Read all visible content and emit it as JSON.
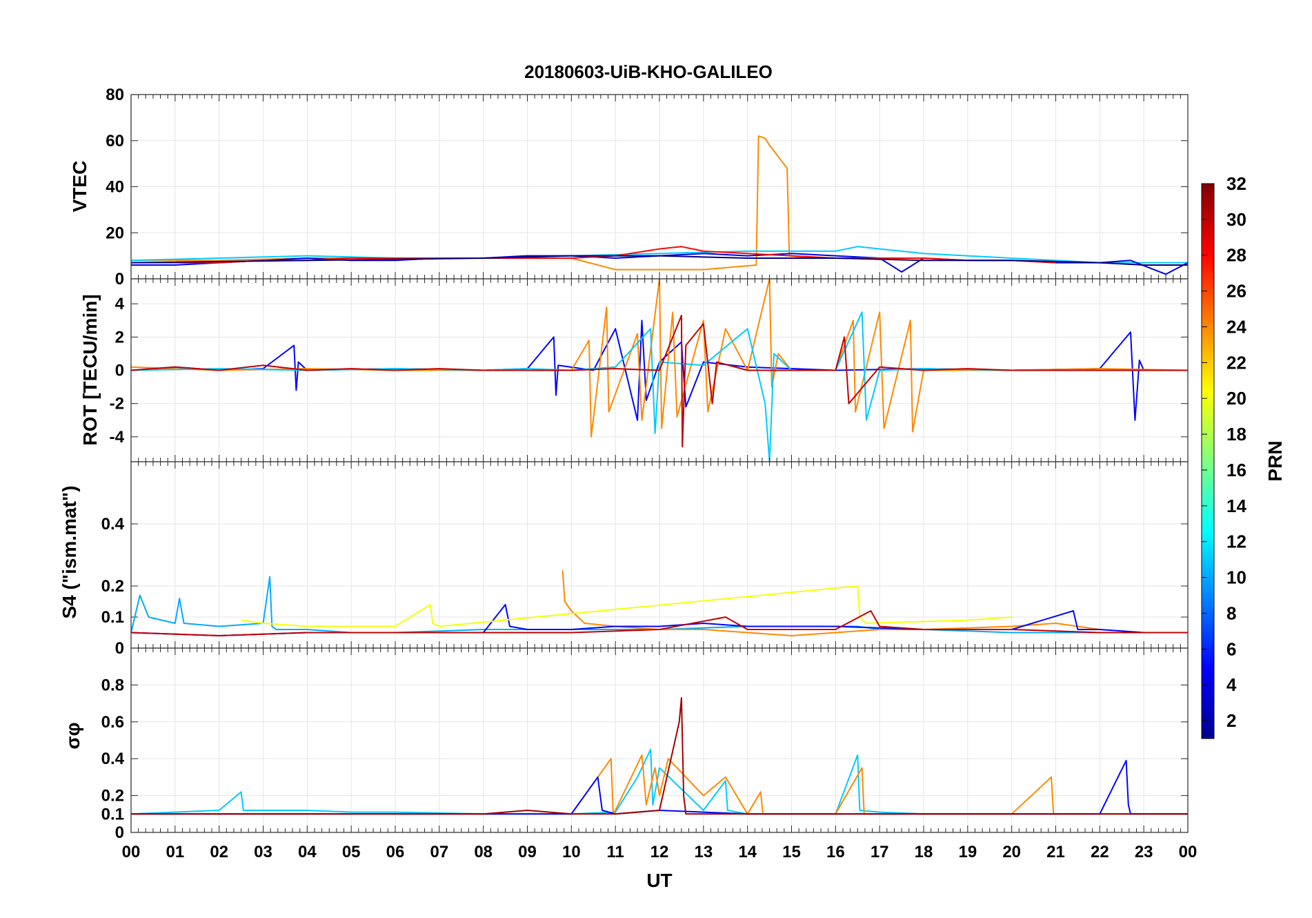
{
  "chart_data": {
    "type": "line",
    "title": "20180603-UiB-KHO-GALILEO",
    "xlabel": "UT",
    "x_ticks": [
      "00",
      "01",
      "02",
      "03",
      "04",
      "05",
      "06",
      "07",
      "08",
      "09",
      "10",
      "11",
      "12",
      "13",
      "14",
      "15",
      "16",
      "17",
      "18",
      "19",
      "20",
      "21",
      "22",
      "23",
      "00"
    ],
    "xlim": [
      0,
      24
    ],
    "colorbar": {
      "label": "PRN",
      "range": [
        1,
        32
      ],
      "ticks": [
        "2",
        "4",
        "6",
        "8",
        "10",
        "12",
        "14",
        "16",
        "18",
        "20",
        "22",
        "24",
        "26",
        "28",
        "30",
        "32"
      ],
      "colormap": "jet"
    },
    "panels": [
      {
        "name": "vtec",
        "ylabel": "VTEC",
        "ylim": [
          0,
          80
        ],
        "y_ticks": [
          "0",
          "20",
          "40",
          "60",
          "80"
        ],
        "series": [
          {
            "prn": 24,
            "x": [
              0,
              2,
              4,
              6,
              8,
              10,
              11,
              12,
              13,
              14.2,
              14.25,
              14.4,
              14.5,
              14.9,
              14.95,
              15.5,
              16
            ],
            "y": [
              8,
              8,
              9,
              9,
              9,
              9,
              4,
              4,
              4,
              6,
              62,
              61,
              58,
              48,
              10,
              9,
              9
            ]
          },
          {
            "prn": 11,
            "x": [
              0,
              2,
              4,
              6,
              8,
              10,
              12,
              14,
              16,
              16.5,
              17,
              17.5,
              18,
              19,
              20,
              21,
              22,
              23,
              24
            ],
            "y": [
              8,
              9,
              10,
              9,
              9,
              10,
              11,
              12,
              12,
              14,
              13,
              12,
              11,
              10,
              9,
              8,
              7,
              7,
              7
            ]
          },
          {
            "prn": 4,
            "x": [
              0,
              1,
              2,
              3,
              4,
              5,
              6,
              7,
              8,
              9,
              10,
              11,
              12,
              13,
              14,
              15,
              16,
              17,
              17.5,
              18,
              19,
              20,
              21,
              22,
              22.7,
              23.5,
              24
            ],
            "y": [
              6,
              6,
              7,
              8,
              9,
              8,
              8,
              9,
              9,
              10,
              10,
              9,
              10,
              11,
              10,
              11,
              10,
              9,
              3,
              9,
              8,
              8,
              7,
              7,
              8,
              2,
              7
            ]
          },
          {
            "prn": 28,
            "x": [
              0,
              2,
              3,
              4,
              5,
              6,
              7,
              8,
              9,
              10,
              11,
              12,
              12.5,
              13,
              14,
              16,
              18,
              19,
              20,
              21
            ],
            "y": [
              7,
              7,
              8,
              8,
              9,
              9,
              9,
              9,
              9,
              9,
              10,
              13,
              14,
              12,
              11,
              9,
              9,
              8,
              8,
              7
            ]
          },
          {
            "prn": 1,
            "x": [
              0,
              4,
              8,
              10,
              12,
              14,
              16,
              18,
              20,
              22,
              23,
              24
            ],
            "y": [
              7,
              8,
              9,
              10,
              10,
              9,
              9,
              8,
              8,
              7,
              6,
              6
            ]
          }
        ]
      },
      {
        "name": "rot",
        "ylabel": "ROT [TECU/min]",
        "ylim": [
          -5.5,
          5.5
        ],
        "y_ticks": [
          "-4",
          "-2",
          "0",
          "2",
          "4"
        ],
        "series": [
          {
            "prn": 5,
            "x": [
              0,
              1,
              2,
              3,
              3.7,
              3.75,
              3.8,
              4,
              6,
              8,
              9,
              9.6,
              9.65,
              9.7,
              10.5,
              11,
              11.5,
              11.6,
              11.7,
              12,
              12.5,
              12.6,
              13,
              14,
              16,
              18,
              20,
              22,
              22.7,
              22.8,
              22.9,
              23,
              24
            ],
            "y": [
              0,
              0.2,
              0,
              0.1,
              1.5,
              -1.2,
              0.5,
              0,
              0.1,
              0,
              0.1,
              2,
              -1.5,
              0.3,
              0,
              2.5,
              -3,
              3,
              -1.8,
              0.5,
              1.7,
              -2.2,
              0.5,
              0.2,
              0,
              0.1,
              0,
              0.1,
              2.3,
              -3,
              0.6,
              0,
              0
            ]
          },
          {
            "prn": 24,
            "x": [
              0,
              2,
              4,
              6,
              8,
              10,
              10.4,
              10.45,
              10.8,
              10.85,
              11.5,
              11.6,
              12,
              12.05,
              12.3,
              12.4,
              13,
              13.1,
              13.5,
              14,
              14.5,
              14.55,
              14.7,
              15,
              16,
              16.4,
              16.45,
              17,
              17.1,
              17.7,
              17.75,
              18,
              20,
              22,
              24
            ],
            "y": [
              0.2,
              0,
              0.1,
              0,
              0,
              0,
              1.8,
              -4,
              3.8,
              -2.5,
              2.2,
              -3,
              5.5,
              -3.5,
              3.5,
              -2.8,
              3,
              -2.5,
              2.5,
              0,
              5.5,
              -1,
              1,
              0,
              0,
              3,
              -2.5,
              3.5,
              -3.5,
              3,
              -3.7,
              0,
              0,
              0.1,
              0
            ]
          },
          {
            "prn": 11,
            "x": [
              0,
              2,
              4,
              6,
              8,
              9,
              10,
              11,
              11.8,
              11.9,
              12,
              13,
              14,
              14.4,
              14.5,
              14.6,
              15,
              16,
              16.6,
              16.7,
              17,
              18,
              20,
              22,
              24
            ],
            "y": [
              0,
              0.1,
              0,
              0.1,
              0,
              0.1,
              0,
              0.2,
              2.5,
              -3.8,
              0.5,
              0.3,
              2.5,
              -2,
              -5.5,
              1,
              0,
              0,
              3.5,
              -3,
              0,
              0.1,
              0,
              0,
              0
            ]
          },
          {
            "prn": 30,
            "x": [
              0,
              1,
              2,
              3,
              4,
              5,
              6,
              7,
              8,
              9,
              10,
              11,
              12,
              12.5,
              12.52,
              12.6,
              13,
              13.2,
              13.3,
              14,
              16,
              16.2,
              16.3,
              17,
              18,
              19,
              20,
              22,
              24
            ],
            "y": [
              0,
              0.2,
              0,
              0.3,
              0,
              0.1,
              0,
              0.1,
              0,
              0,
              0,
              0.1,
              0,
              3.3,
              -4.6,
              1.5,
              2.8,
              -2,
              0.5,
              0,
              0,
              2,
              -2,
              0.2,
              0,
              0.1,
              0,
              0,
              0
            ]
          }
        ]
      },
      {
        "name": "s4",
        "ylabel": "S4 (\"ism.mat\")",
        "ylim": [
          0,
          0.6
        ],
        "y_ticks": [
          "0",
          "0.1",
          "0.2",
          "0.4"
        ],
        "series": [
          {
            "prn": 10,
            "x": [
              0,
              0.2,
              0.4,
              1,
              1.1,
              1.2,
              2,
              3,
              3.15,
              3.2,
              3.3,
              4,
              5,
              6,
              8,
              10,
              12,
              14,
              16,
              16.5,
              17,
              18,
              20,
              22,
              24
            ],
            "y": [
              0.05,
              0.17,
              0.1,
              0.08,
              0.16,
              0.08,
              0.07,
              0.08,
              0.23,
              0.07,
              0.06,
              0.06,
              0.05,
              0.05,
              0.06,
              0.06,
              0.06,
              0.07,
              0.07,
              0.07,
              0.06,
              0.06,
              0.05,
              0.05,
              0.05
            ]
          },
          {
            "prn": 24,
            "x": [
              9.8,
              9.85,
              10,
              10.3,
              11,
              12,
              13,
              14,
              15,
              16,
              17,
              18,
              20,
              21,
              22
            ],
            "y": [
              0.25,
              0.15,
              0.12,
              0.08,
              0.07,
              0.06,
              0.06,
              0.05,
              0.04,
              0.05,
              0.06,
              0.06,
              0.07,
              0.08,
              0.06
            ]
          },
          {
            "prn": 5,
            "x": [
              0,
              2,
              4,
              6,
              8,
              8.5,
              8.6,
              9,
              10,
              11,
              12,
              13,
              14,
              16,
              18,
              20,
              21.4,
              21.5,
              22,
              23,
              24
            ],
            "y": [
              0.05,
              0.04,
              0.05,
              0.05,
              0.05,
              0.14,
              0.07,
              0.06,
              0.06,
              0.07,
              0.07,
              0.08,
              0.07,
              0.07,
              0.06,
              0.06,
              0.12,
              0.06,
              0.06,
              0.05,
              0.05
            ]
          },
          {
            "prn": 20,
            "x": [
              2.5,
              3,
              4,
              5,
              6,
              6.8,
              6.85,
              7,
              16.5,
              16.55,
              16.7,
              19,
              20
            ],
            "y": [
              0.09,
              0.08,
              0.07,
              0.07,
              0.07,
              0.14,
              0.08,
              0.07,
              0.2,
              0.1,
              0.08,
              0.09,
              0.1
            ]
          },
          {
            "prn": 30,
            "x": [
              0,
              2,
              4,
              6,
              8,
              10,
              12,
              13.5,
              14,
              16,
              16.8,
              17,
              18,
              20,
              22,
              24
            ],
            "y": [
              0.05,
              0.04,
              0.05,
              0.05,
              0.05,
              0.05,
              0.06,
              0.1,
              0.06,
              0.06,
              0.12,
              0.07,
              0.06,
              0.06,
              0.05,
              0.05
            ]
          }
        ]
      },
      {
        "name": "sigma-phi",
        "ylabel": "σφ",
        "ylim": [
          0,
          1
        ],
        "y_ticks": [
          "0",
          "0.1",
          "0.2",
          "0.4",
          "0.6",
          "0.8"
        ],
        "series": [
          {
            "prn": 11,
            "x": [
              0,
              1,
              2,
              2.5,
              2.55,
              3,
              4,
              5,
              6,
              8,
              10,
              11,
              11.5,
              11.8,
              11.85,
              12,
              13,
              13.5,
              13.55,
              14,
              16,
              16.5,
              16.55,
              17,
              18,
              20,
              22,
              24
            ],
            "y": [
              0.1,
              0.11,
              0.12,
              0.22,
              0.12,
              0.12,
              0.12,
              0.11,
              0.11,
              0.1,
              0.1,
              0.11,
              0.3,
              0.45,
              0.15,
              0.35,
              0.12,
              0.28,
              0.12,
              0.1,
              0.1,
              0.42,
              0.12,
              0.11,
              0.1,
              0.1,
              0.1,
              0.1
            ]
          },
          {
            "prn": 24,
            "x": [
              0,
              2,
              4,
              6,
              8,
              10,
              10.9,
              10.95,
              11,
              11.6,
              11.7,
              11.9,
              12,
              12.2,
              13,
              13.5,
              14,
              14.3,
              14.35,
              15,
              16,
              16.6,
              16.65,
              17,
              18,
              20,
              20.9,
              20.95,
              21,
              24
            ],
            "y": [
              0.1,
              0.1,
              0.1,
              0.1,
              0.1,
              0.1,
              0.4,
              0.1,
              0.12,
              0.42,
              0.15,
              0.35,
              0.2,
              0.4,
              0.2,
              0.3,
              0.1,
              0.22,
              0.1,
              0.1,
              0.1,
              0.35,
              0.1,
              0.1,
              0.1,
              0.1,
              0.3,
              0.1,
              0.1,
              0.1
            ]
          },
          {
            "prn": 5,
            "x": [
              0,
              2,
              4,
              6,
              8,
              10,
              10.6,
              10.7,
              11,
              12,
              14,
              16,
              18,
              20,
              22,
              22.6,
              22.65,
              22.7,
              23,
              24
            ],
            "y": [
              0.1,
              0.1,
              0.1,
              0.1,
              0.1,
              0.1,
              0.3,
              0.12,
              0.1,
              0.12,
              0.1,
              0.1,
              0.1,
              0.1,
              0.1,
              0.39,
              0.15,
              0.1,
              0.1,
              0.1
            ]
          },
          {
            "prn": 31,
            "x": [
              0,
              2,
              4,
              6,
              8,
              9,
              10,
              11,
              12,
              12.45,
              12.5,
              12.55,
              12.6,
              13,
              14,
              16,
              18,
              20,
              22,
              24
            ],
            "y": [
              0.1,
              0.1,
              0.1,
              0.1,
              0.1,
              0.12,
              0.1,
              0.1,
              0.12,
              0.6,
              0.73,
              0.2,
              0.1,
              0.1,
              0.1,
              0.1,
              0.1,
              0.1,
              0.1,
              0.1
            ]
          }
        ]
      }
    ]
  }
}
